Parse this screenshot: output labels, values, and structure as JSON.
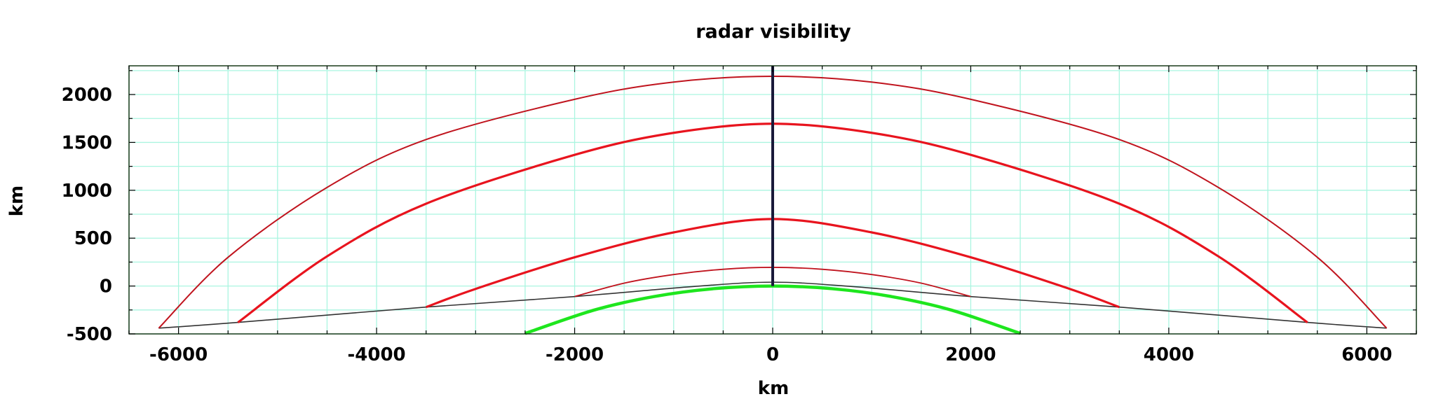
{
  "chart_data": {
    "type": "line",
    "title": "radar visibility",
    "xlabel": "km",
    "ylabel": "km",
    "xlim": [
      -6500,
      6500
    ],
    "ylim": [
      -500,
      2300
    ],
    "xticks": [
      -6000,
      -4000,
      -2000,
      0,
      2000,
      4000,
      6000
    ],
    "yticks": [
      -500,
      0,
      500,
      1000,
      1500,
      2000
    ],
    "grid": true,
    "colors": {
      "grid": "#aaf5e0",
      "frame": "#1a3a1a",
      "red_dark": "#c0141e",
      "red": "#e8141e",
      "black_curve": "#333333",
      "green": "#1ee61e",
      "vertical": "#1a1a3a"
    },
    "series": [
      {
        "x": [
          -6200,
          -5400,
          -3500,
          -2000,
          -800,
          0,
          800,
          2000,
          3500,
          5400,
          6200
        ],
        "y": [
          -440,
          -380,
          -220,
          -110,
          -5,
          40,
          -5,
          -110,
          -220,
          -380,
          -440
        ]
      },
      {
        "x": [
          -2500,
          -1800,
          -1200,
          -600,
          0,
          600,
          1200,
          1800,
          2500
        ],
        "y": [
          -495,
          -250,
          -110,
          -28,
          0,
          -28,
          -110,
          -250,
          -495
        ]
      },
      {
        "x": [
          -2000,
          -1500,
          -1000,
          -500,
          0,
          500,
          1000,
          1500,
          2000
        ],
        "y": [
          -110,
          30,
          120,
          175,
          195,
          175,
          120,
          30,
          -110
        ]
      },
      {
        "x": [
          -3500,
          -3000,
          -2000,
          -1000,
          0,
          1000,
          2000,
          3000,
          3500
        ],
        "y": [
          -220,
          -30,
          300,
          560,
          700,
          560,
          300,
          -30,
          -220
        ]
      },
      {
        "x": [
          -5400,
          -4500,
          -3500,
          -2000,
          -1000,
          0,
          1000,
          2000,
          3500,
          4500,
          5400
        ],
        "y": [
          -380,
          310,
          860,
          1370,
          1600,
          1695,
          1600,
          1370,
          860,
          310,
          -380
        ]
      },
      {
        "x": [
          -6200,
          -5500,
          -4500,
          -3500,
          -2000,
          -1000,
          0,
          1000,
          2000,
          3500,
          4500,
          5500,
          6200
        ],
        "y": [
          -440,
          300,
          1030,
          1530,
          1950,
          2130,
          2190,
          2130,
          1950,
          1530,
          1030,
          300,
          -440
        ]
      },
      {
        "x": [
          0,
          0
        ],
        "y": [
          0,
          2300
        ]
      }
    ]
  }
}
